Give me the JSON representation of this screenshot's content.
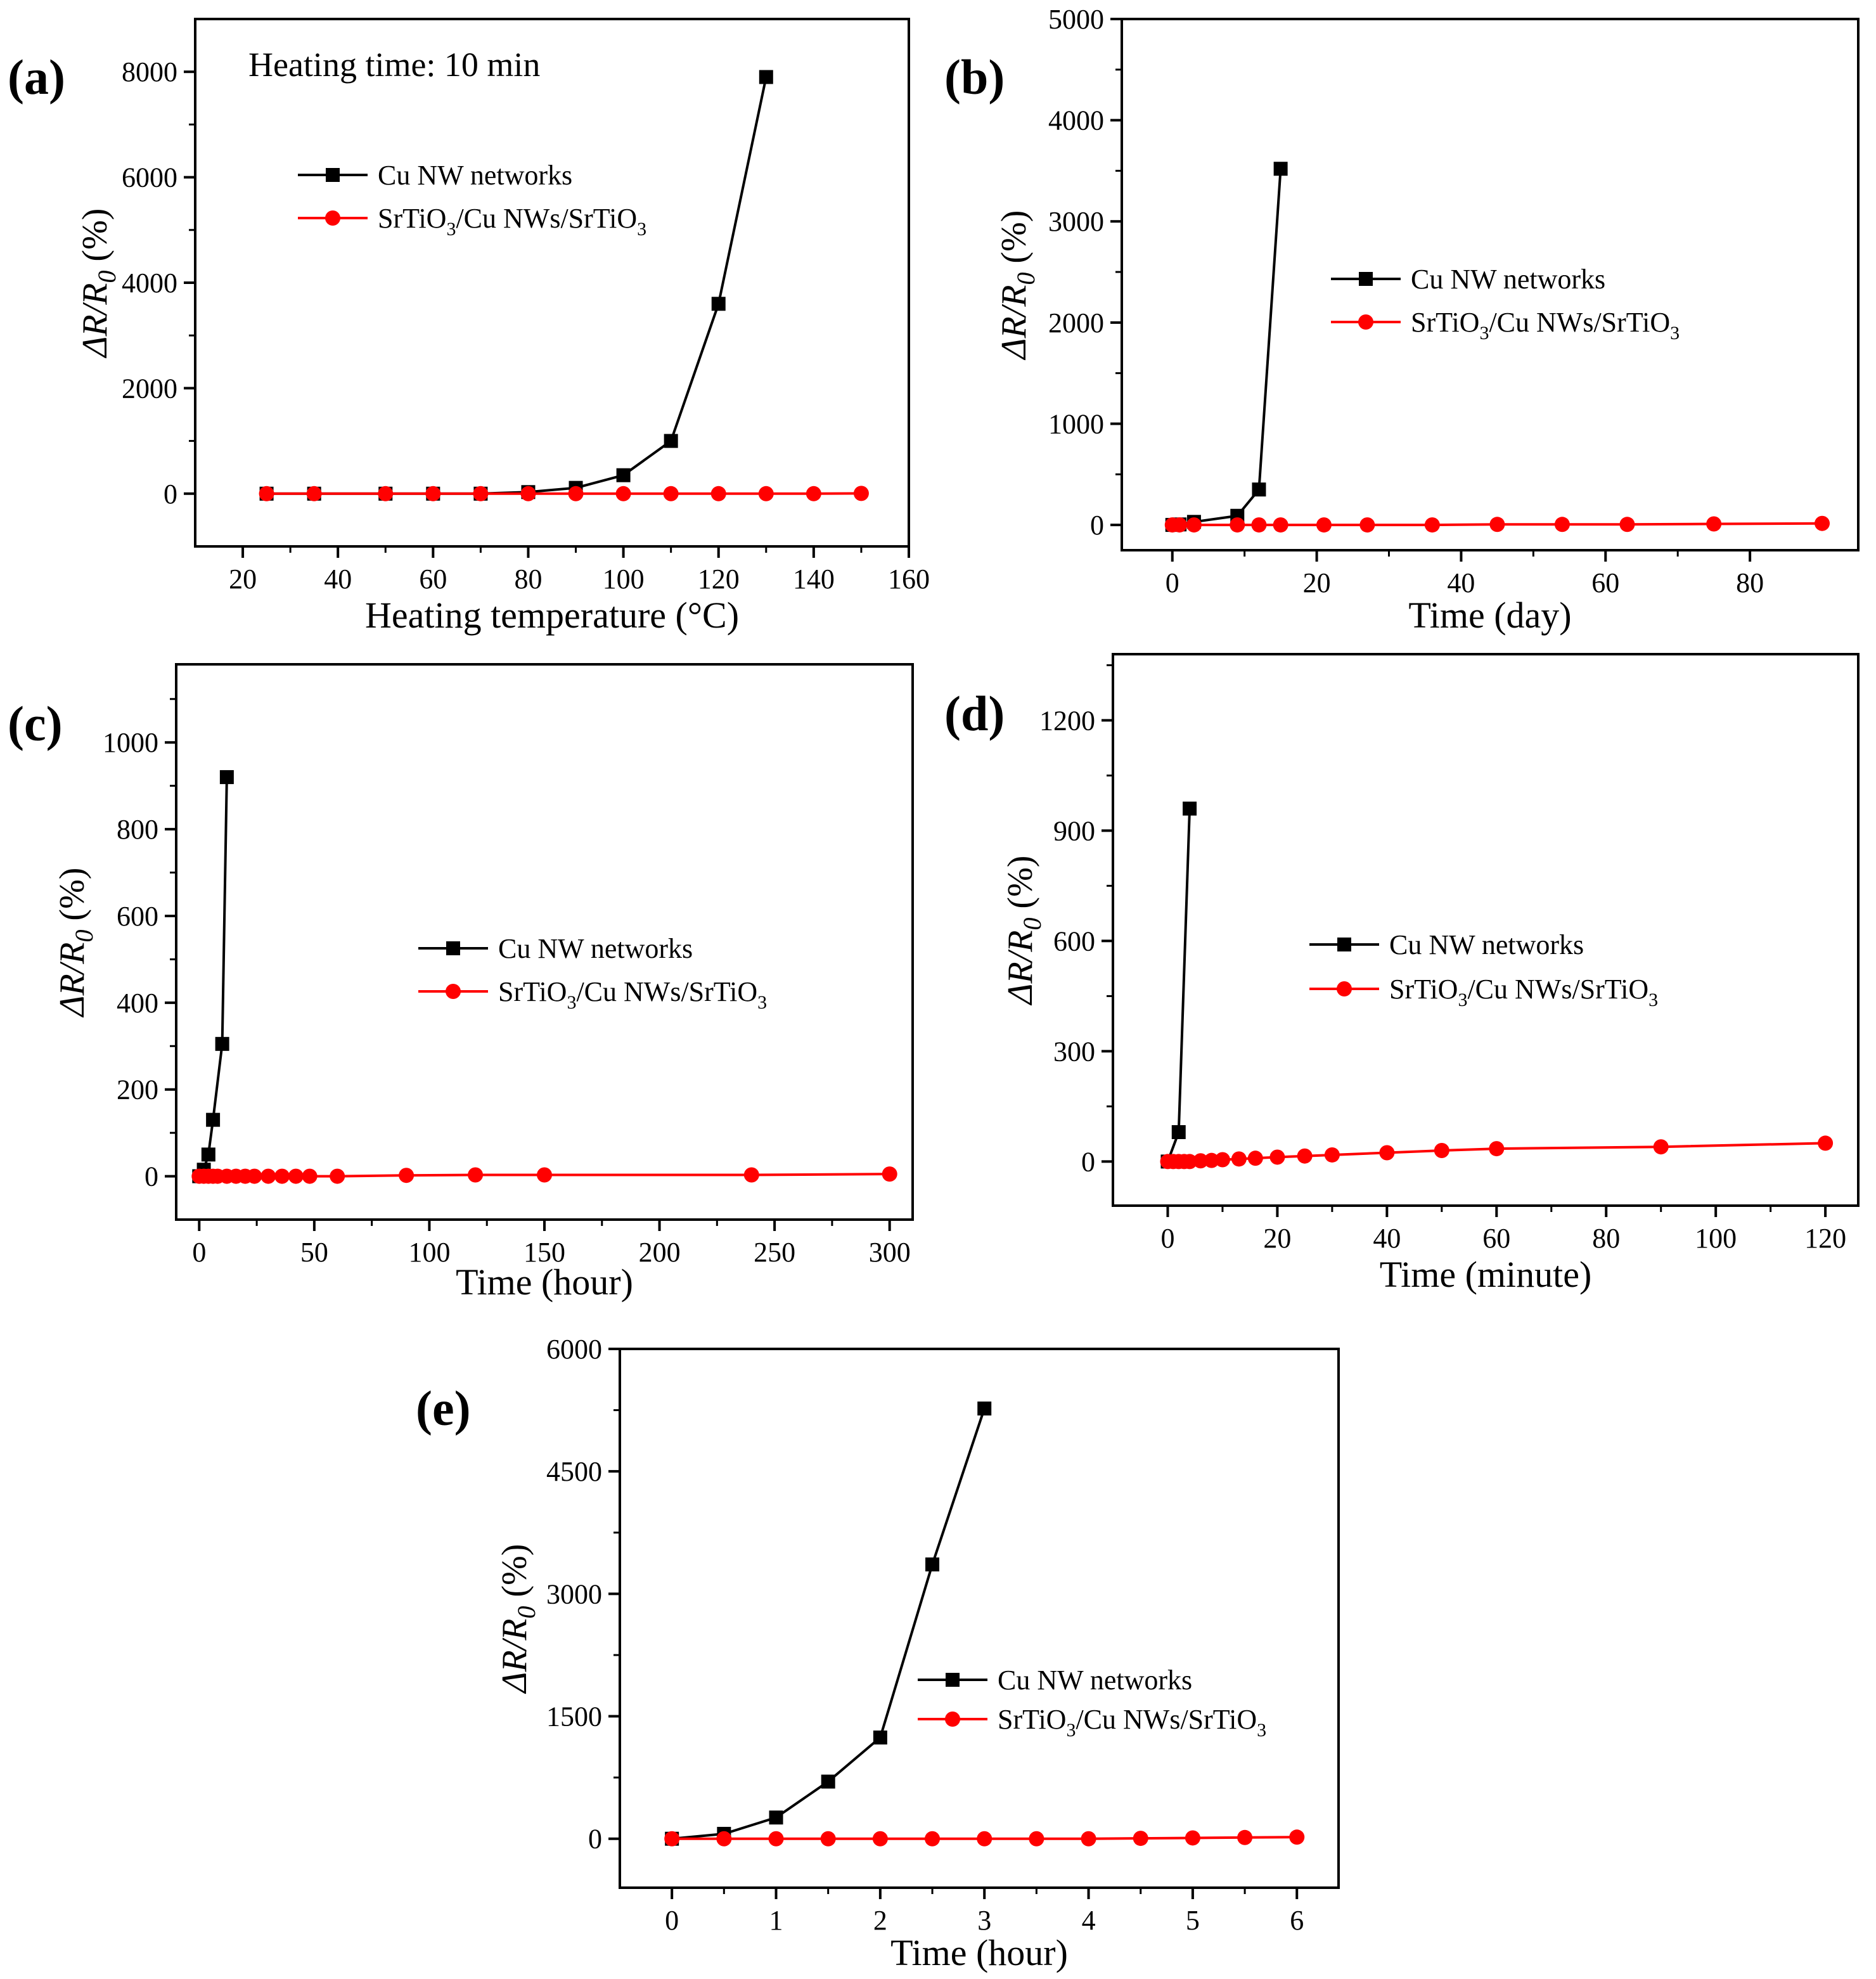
{
  "chart_data": [
    {
      "id": "a",
      "panel_label": "(a)",
      "type": "line",
      "annotation": "Heating time: 10 min",
      "xlabel": "Heating temperature (°C)",
      "ylabel": {
        "prefix": "ΔR/R",
        "sub": "0",
        "suffix": " (%)"
      },
      "xlim": [
        10,
        160
      ],
      "ylim": [
        -1000,
        9000
      ],
      "xticks": [
        20,
        40,
        60,
        80,
        100,
        120,
        140,
        160
      ],
      "yticks": [
        0,
        2000,
        4000,
        6000,
        8000
      ],
      "legend_position": "upper-left",
      "series": [
        {
          "name": "Cu NW networks",
          "color": "#000000",
          "marker": "square",
          "x": [
            25,
            35,
            50,
            60,
            70,
            80,
            90,
            100,
            110,
            120,
            130
          ],
          "y": [
            0,
            0,
            0,
            0,
            0,
            30,
            110,
            350,
            1000,
            3600,
            7900
          ]
        },
        {
          "name": {
            "parts": [
              [
                "SrTiO",
                ""
              ],
              [
                "3",
                "sub"
              ],
              [
                "/Cu NWs/SrTiO",
                ""
              ],
              [
                "3",
                "sub"
              ]
            ]
          },
          "color": "#ff0000",
          "marker": "circle",
          "x": [
            25,
            35,
            50,
            60,
            70,
            80,
            90,
            100,
            110,
            120,
            130,
            140,
            150
          ],
          "y": [
            0,
            0,
            0,
            0,
            0,
            0,
            0,
            0,
            0,
            0,
            0,
            0,
            5
          ]
        }
      ]
    },
    {
      "id": "b",
      "panel_label": "(b)",
      "type": "line",
      "xlabel": "Time (day)",
      "ylabel": {
        "prefix": "ΔR/R",
        "sub": "0",
        "suffix": " (%)"
      },
      "xlim": [
        -7,
        95
      ],
      "ylim": [
        -250,
        5000
      ],
      "xticks": [
        0,
        20,
        40,
        60,
        80
      ],
      "yticks": [
        0,
        1000,
        2000,
        3000,
        4000,
        5000
      ],
      "legend_position": "middle-right",
      "series": [
        {
          "name": "Cu NW networks",
          "color": "#000000",
          "marker": "square",
          "x": [
            0,
            1,
            3,
            9,
            12,
            15
          ],
          "y": [
            0,
            5,
            30,
            90,
            350,
            3520
          ]
        },
        {
          "name": {
            "parts": [
              [
                "SrTiO",
                ""
              ],
              [
                "3",
                "sub"
              ],
              [
                "/Cu NWs/SrTiO",
                ""
              ],
              [
                "3",
                "sub"
              ]
            ]
          },
          "color": "#ff0000",
          "marker": "circle",
          "x": [
            0,
            1,
            3,
            9,
            12,
            15,
            21,
            27,
            36,
            45,
            54,
            63,
            75,
            90
          ],
          "y": [
            0,
            0,
            0,
            0,
            0,
            0,
            0,
            0,
            0,
            5,
            5,
            5,
            10,
            15
          ]
        }
      ]
    },
    {
      "id": "c",
      "panel_label": "(c)",
      "type": "line",
      "xlabel": "Time (hour)",
      "ylabel": {
        "prefix": "ΔR/R",
        "sub": "0",
        "suffix": " (%)"
      },
      "xlim": [
        -10,
        310
      ],
      "ylim": [
        -100,
        1180
      ],
      "xticks": [
        0,
        50,
        100,
        150,
        200,
        250,
        300
      ],
      "yticks": [
        0,
        200,
        400,
        600,
        800,
        1000
      ],
      "legend_position": "middle-right",
      "series": [
        {
          "name": "Cu NW networks",
          "color": "#000000",
          "marker": "square",
          "x": [
            0,
            2,
            4,
            6,
            10,
            12
          ],
          "y": [
            0,
            15,
            50,
            130,
            305,
            920
          ]
        },
        {
          "name": {
            "parts": [
              [
                "SrTiO",
                ""
              ],
              [
                "3",
                "sub"
              ],
              [
                "/Cu NWs/SrTiO",
                ""
              ],
              [
                "3",
                "sub"
              ]
            ]
          },
          "color": "#ff0000",
          "marker": "circle",
          "x": [
            0,
            2,
            4,
            6,
            8,
            12,
            16,
            20,
            24,
            30,
            36,
            42,
            48,
            60,
            90,
            120,
            150,
            240,
            300
          ],
          "y": [
            0,
            0,
            0,
            0,
            0,
            0,
            0,
            0,
            0,
            0,
            0,
            0,
            0,
            0,
            2,
            3,
            3,
            3,
            5
          ]
        }
      ]
    },
    {
      "id": "d",
      "panel_label": "(d)",
      "type": "line",
      "xlabel": "Time (minute)",
      "ylabel": {
        "prefix": "ΔR/R",
        "sub": "0",
        "suffix": " (%)"
      },
      "xlim": [
        -10,
        126
      ],
      "ylim": [
        -120,
        1380
      ],
      "xticks": [
        0,
        20,
        40,
        60,
        80,
        100,
        120
      ],
      "yticks": [
        0,
        300,
        600,
        900,
        1200
      ],
      "legend_position": "middle-right",
      "series": [
        {
          "name": "Cu NW networks",
          "color": "#000000",
          "marker": "square",
          "x": [
            0,
            2,
            4
          ],
          "y": [
            0,
            80,
            960
          ]
        },
        {
          "name": {
            "parts": [
              [
                "SrTiO",
                ""
              ],
              [
                "3",
                "sub"
              ],
              [
                "/Cu NWs/SrTiO",
                ""
              ],
              [
                "3",
                "sub"
              ]
            ]
          },
          "color": "#ff0000",
          "marker": "circle",
          "x": [
            0,
            1,
            2,
            3,
            4,
            6,
            8,
            10,
            13,
            16,
            20,
            25,
            30,
            40,
            50,
            60,
            90,
            120
          ],
          "y": [
            0,
            0,
            0,
            0,
            0,
            2,
            3,
            5,
            7,
            9,
            12,
            15,
            18,
            24,
            30,
            35,
            40,
            50
          ]
        }
      ]
    },
    {
      "id": "e",
      "panel_label": "(e)",
      "type": "line",
      "xlabel": "Time (hour)",
      "ylabel": {
        "prefix": "ΔR/R",
        "sub": "0",
        "suffix": " (%)"
      },
      "xlim": [
        -0.5,
        6.4
      ],
      "ylim": [
        -600,
        6000
      ],
      "xticks": [
        0,
        1,
        2,
        3,
        4,
        5,
        6
      ],
      "yticks": [
        0,
        1500,
        3000,
        4500,
        6000
      ],
      "legend_position": "lower-right",
      "series": [
        {
          "name": "Cu NW networks",
          "color": "#000000",
          "marker": "square",
          "x": [
            0,
            0.5,
            1,
            1.5,
            2,
            2.5,
            3
          ],
          "y": [
            0,
            60,
            260,
            700,
            1240,
            3360,
            5270
          ]
        },
        {
          "name": {
            "parts": [
              [
                "SrTiO",
                ""
              ],
              [
                "3",
                "sub"
              ],
              [
                "/Cu NWs/SrTiO",
                ""
              ],
              [
                "3",
                "sub"
              ]
            ]
          },
          "color": "#ff0000",
          "marker": "circle",
          "x": [
            0,
            0.5,
            1,
            1.5,
            2,
            2.5,
            3,
            3.5,
            4,
            4.5,
            5,
            5.5,
            6
          ],
          "y": [
            0,
            0,
            0,
            0,
            0,
            0,
            0,
            0,
            0,
            5,
            10,
            15,
            20
          ]
        }
      ]
    }
  ]
}
